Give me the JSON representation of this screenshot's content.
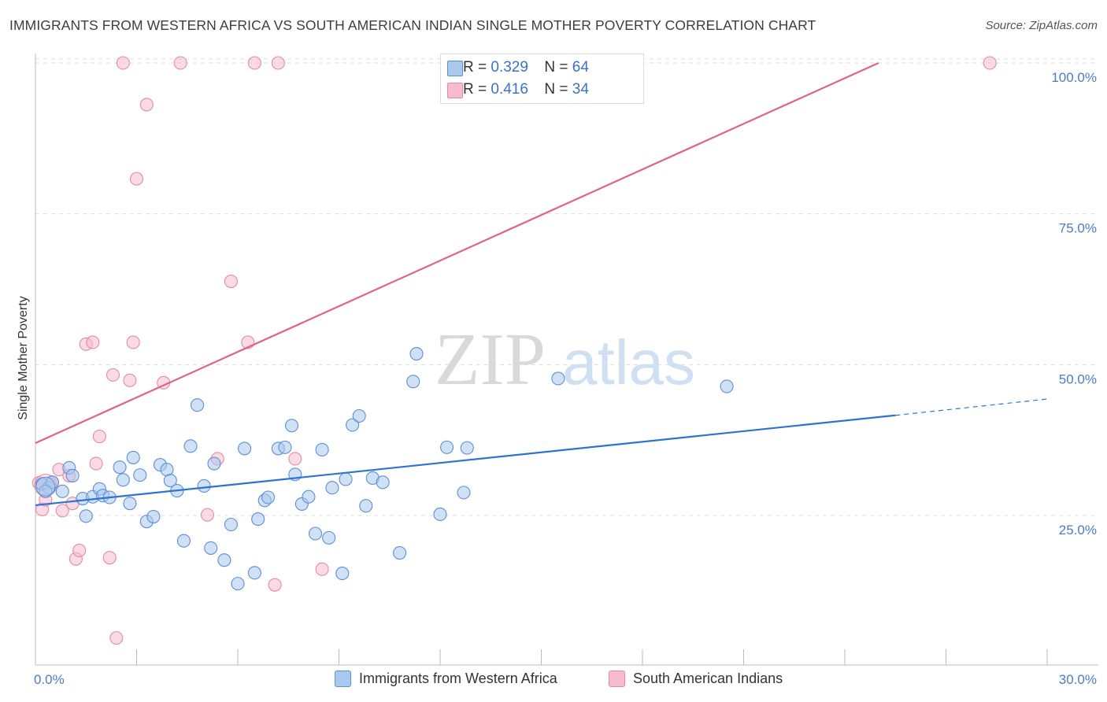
{
  "title": "IMMIGRANTS FROM WESTERN AFRICA VS SOUTH AMERICAN INDIAN SINGLE MOTHER POVERTY CORRELATION CHART",
  "source": "Source: ZipAtlas.com",
  "watermark": {
    "zip": "ZIP",
    "atlas": "atlas"
  },
  "legend": {
    "r_label": "R =",
    "n_label": "N =",
    "series": [
      {
        "r": "0.329",
        "n": "64"
      },
      {
        "r": "0.416",
        "n": "34"
      }
    ]
  },
  "colors": {
    "blue_fill": "#a9c8ee",
    "blue_stroke": "#5b8fd6",
    "blue_line": "#2f73d0",
    "pink_fill": "#f6bccd",
    "pink_stroke": "#e48aa6",
    "pink_line": "#e0628c",
    "tick_text": "#4a7cc9",
    "grid": "#dddddd"
  },
  "chart_data": {
    "type": "scatter",
    "title": "IMMIGRANTS FROM WESTERN AFRICA VS SOUTH AMERICAN INDIAN SINGLE MOTHER POVERTY CORRELATION CHART",
    "xlabel": "",
    "ylabel": "Single Mother Poverty",
    "xlim": [
      0,
      30
    ],
    "ylim": [
      0,
      102
    ],
    "x_tick_labels": [
      "0.0%",
      "30.0%"
    ],
    "y_ticks": [
      25,
      50,
      75,
      100
    ],
    "y_tick_labels": [
      "25.0%",
      "50.0%",
      "75.0%",
      "100.0%"
    ],
    "grid": true,
    "series": [
      {
        "name": "Immigrants from Western Africa",
        "color": "#a9c8ee",
        "points": [
          [
            0.2,
            30.2
          ],
          [
            0.4,
            29.6
          ],
          [
            0.5,
            30.5
          ],
          [
            0.8,
            29.0
          ],
          [
            1.0,
            32.9
          ],
          [
            1.1,
            31.6
          ],
          [
            1.4,
            27.8
          ],
          [
            1.5,
            24.9
          ],
          [
            1.7,
            28.1
          ],
          [
            1.9,
            29.4
          ],
          [
            2.0,
            28.3
          ],
          [
            2.2,
            28.0
          ],
          [
            2.5,
            33.0
          ],
          [
            2.6,
            30.9
          ],
          [
            2.8,
            27.0
          ],
          [
            2.9,
            34.6
          ],
          [
            3.1,
            31.7
          ],
          [
            3.3,
            24.0
          ],
          [
            3.5,
            24.8
          ],
          [
            3.7,
            33.4
          ],
          [
            3.9,
            32.6
          ],
          [
            4.0,
            30.8
          ],
          [
            4.2,
            29.1
          ],
          [
            4.4,
            20.8
          ],
          [
            4.6,
            36.5
          ],
          [
            4.8,
            43.3
          ],
          [
            5.0,
            29.9
          ],
          [
            5.2,
            19.6
          ],
          [
            5.3,
            33.6
          ],
          [
            5.6,
            17.6
          ],
          [
            5.8,
            23.5
          ],
          [
            6.0,
            13.7
          ],
          [
            6.2,
            36.1
          ],
          [
            6.5,
            15.5
          ],
          [
            6.6,
            24.4
          ],
          [
            6.8,
            27.5
          ],
          [
            6.9,
            28.0
          ],
          [
            7.2,
            36.1
          ],
          [
            7.4,
            36.3
          ],
          [
            7.6,
            39.9
          ],
          [
            7.7,
            31.8
          ],
          [
            7.9,
            26.9
          ],
          [
            8.1,
            28.1
          ],
          [
            8.3,
            22.0
          ],
          [
            8.5,
            35.9
          ],
          [
            8.7,
            21.3
          ],
          [
            8.8,
            29.6
          ],
          [
            9.1,
            15.4
          ],
          [
            9.2,
            31.0
          ],
          [
            9.4,
            40.0
          ],
          [
            9.6,
            41.5
          ],
          [
            9.8,
            26.6
          ],
          [
            10.0,
            31.2
          ],
          [
            10.3,
            30.5
          ],
          [
            10.8,
            18.8
          ],
          [
            11.2,
            47.2
          ],
          [
            11.3,
            51.8
          ],
          [
            12.0,
            25.2
          ],
          [
            12.2,
            36.3
          ],
          [
            12.7,
            28.8
          ],
          [
            12.8,
            36.2
          ],
          [
            15.5,
            47.7
          ],
          [
            20.5,
            46.4
          ],
          [
            0.3,
            29.0
          ]
        ]
      },
      {
        "name": "South American Indians",
        "color": "#f6bccd",
        "points": [
          [
            0.1,
            30.4
          ],
          [
            0.2,
            26.0
          ],
          [
            0.3,
            27.6
          ],
          [
            0.5,
            30.5
          ],
          [
            0.7,
            32.6
          ],
          [
            0.8,
            25.8
          ],
          [
            1.0,
            31.6
          ],
          [
            1.1,
            27.0
          ],
          [
            1.2,
            17.8
          ],
          [
            1.3,
            19.2
          ],
          [
            1.5,
            53.4
          ],
          [
            1.7,
            53.7
          ],
          [
            1.8,
            33.6
          ],
          [
            1.9,
            38.1
          ],
          [
            2.2,
            18.0
          ],
          [
            2.3,
            48.3
          ],
          [
            2.4,
            4.7
          ],
          [
            2.6,
            100.0
          ],
          [
            2.8,
            47.4
          ],
          [
            2.9,
            53.7
          ],
          [
            3.0,
            80.8
          ],
          [
            3.3,
            93.1
          ],
          [
            3.8,
            47.0
          ],
          [
            4.3,
            100.0
          ],
          [
            5.1,
            25.1
          ],
          [
            5.4,
            34.4
          ],
          [
            5.8,
            63.8
          ],
          [
            6.3,
            53.7
          ],
          [
            6.5,
            100.0
          ],
          [
            7.1,
            13.5
          ],
          [
            7.2,
            100.0
          ],
          [
            7.7,
            34.4
          ],
          [
            8.5,
            16.1
          ],
          [
            28.3,
            100.0
          ]
        ]
      }
    ],
    "trend_lines": [
      {
        "series": "Immigrants from Western Africa",
        "x": [
          0,
          25.5
        ],
        "y": [
          26.7,
          41.6
        ],
        "dashed_extension_to": [
          30,
          44.3
        ]
      },
      {
        "series": "South American Indians",
        "x": [
          0,
          25.0
        ],
        "y": [
          37.0,
          100.0
        ]
      }
    ]
  }
}
